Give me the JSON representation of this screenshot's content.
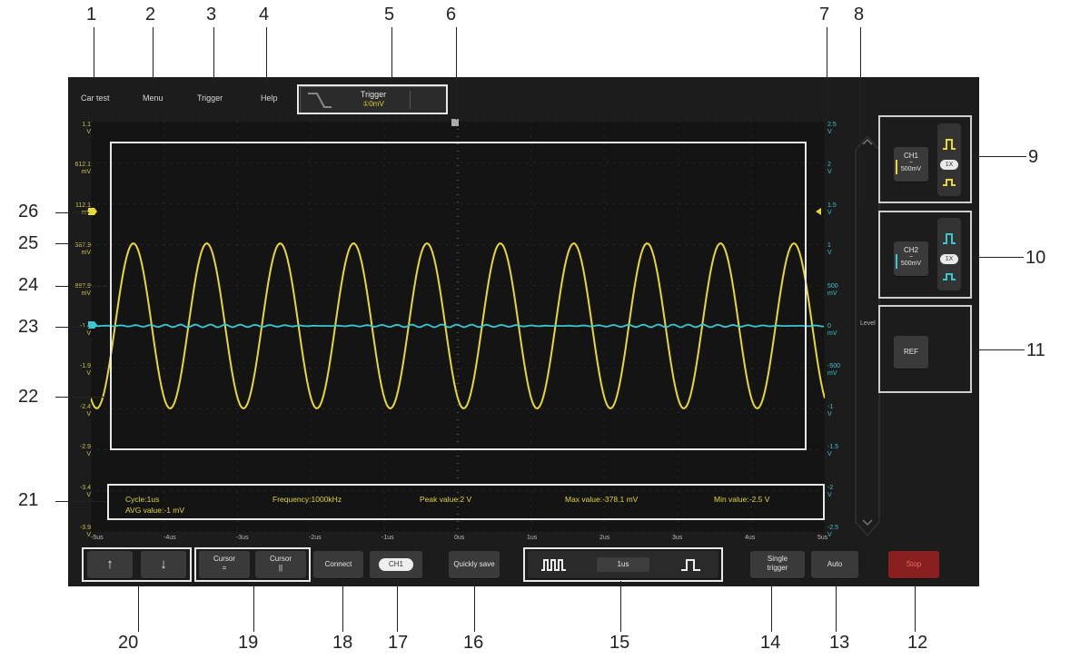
{
  "topbar": {
    "car_test": "Car test",
    "menu": "Menu",
    "trigger": "Trigger",
    "help": "Help"
  },
  "trigger_box": {
    "title": "Trigger",
    "value": "①0mV"
  },
  "y_labels_left": [
    "1.1\nV",
    "612.1\nmV",
    "112.1\nmV",
    "387.9\nmV",
    "887.9\nmV",
    "-1.4\nV",
    "-1.9\nV",
    "-2.4\nV",
    "-2.9\nV",
    "-3.4\nV",
    "-3.9\nV"
  ],
  "y_labels_right": [
    "2.5\nV",
    "2\nV",
    "1.5\nV",
    "1\nV",
    "500\nmV",
    "0\nmV",
    "-500\nmV",
    "-1\nV",
    "-1.5\nV",
    "-2\nV",
    "-2.5\nV"
  ],
  "x_labels": [
    "-5us",
    "-4us",
    "-3us",
    "-2us",
    "-1us",
    "0us",
    "1us",
    "2us",
    "3us",
    "4us",
    "5us"
  ],
  "measurements": {
    "cycle": "Cycle:1us",
    "frequency": "Frequency:1000kHz",
    "peak": "Peak value:2  V",
    "max": "Max value:-378.1  mV",
    "min": "Min value:-2.5  V",
    "avg": "AVG value:-1  mV"
  },
  "channels": {
    "ch1": {
      "label": "CH1",
      "scale": "500mV",
      "coupling": "~",
      "probe": "1X",
      "color": "#e8d835"
    },
    "ch2": {
      "label": "CH2",
      "scale": "500mV",
      "coupling": "~",
      "probe": "1X",
      "color": "#38c8cf"
    }
  },
  "ref_label": "REF",
  "level_label": "Level",
  "bottom": {
    "up": "↑",
    "down": "↓",
    "cursor_h": "Cursor\n=",
    "cursor_v": "Cursor\n||",
    "connect": "Connect",
    "ch_toggle": "CH1",
    "quick_save": "Quickly save",
    "timebase": "1us",
    "single_trigger": "Single\ntrigger",
    "auto": "Auto",
    "stop": "Stop"
  },
  "callouts": [
    "1",
    "2",
    "3",
    "4",
    "5",
    "6",
    "7",
    "8",
    "9",
    "10",
    "11",
    "12",
    "13",
    "14",
    "15",
    "16",
    "17",
    "18",
    "19",
    "20",
    "21",
    "22",
    "23",
    "24",
    "25",
    "26"
  ],
  "chart_data": {
    "type": "line",
    "title": "",
    "series": [
      {
        "name": "CH1",
        "color": "#e8d835",
        "waveform": "sine",
        "frequency_hz": 1000000,
        "peak_to_peak_v": 2,
        "max_v": -0.3781,
        "min_v": -2.5
      },
      {
        "name": "CH2",
        "color": "#38c8cf",
        "waveform": "flat",
        "value_v": 0
      }
    ],
    "x_range_us": [
      -5,
      5
    ],
    "grid": true
  }
}
